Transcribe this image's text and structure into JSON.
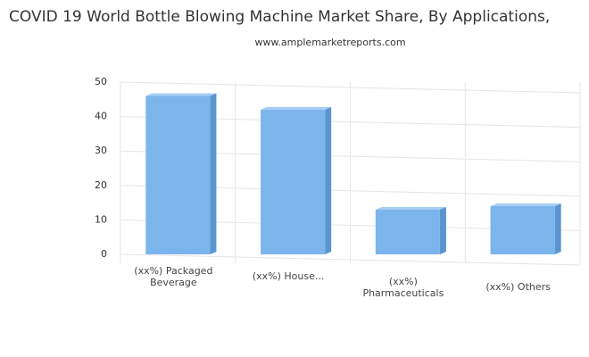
{
  "chart_data": {
    "type": "bar",
    "title": "COVID 19 World Bottle Blowing Machine Market Share, By Applications,",
    "subtitle": "www.amplemarketreports.com",
    "categories": [
      "(xx%) Packaged Beverage",
      "(xx%) House...",
      "(xx%) Pharmaceuticals",
      "(xx%) Others"
    ],
    "values": [
      46,
      42,
      13,
      14
    ],
    "color": "#7cb5ec",
    "ylim": [
      0,
      50
    ],
    "yticks": [
      0,
      10,
      20,
      30,
      40,
      50
    ],
    "grid": true
  }
}
